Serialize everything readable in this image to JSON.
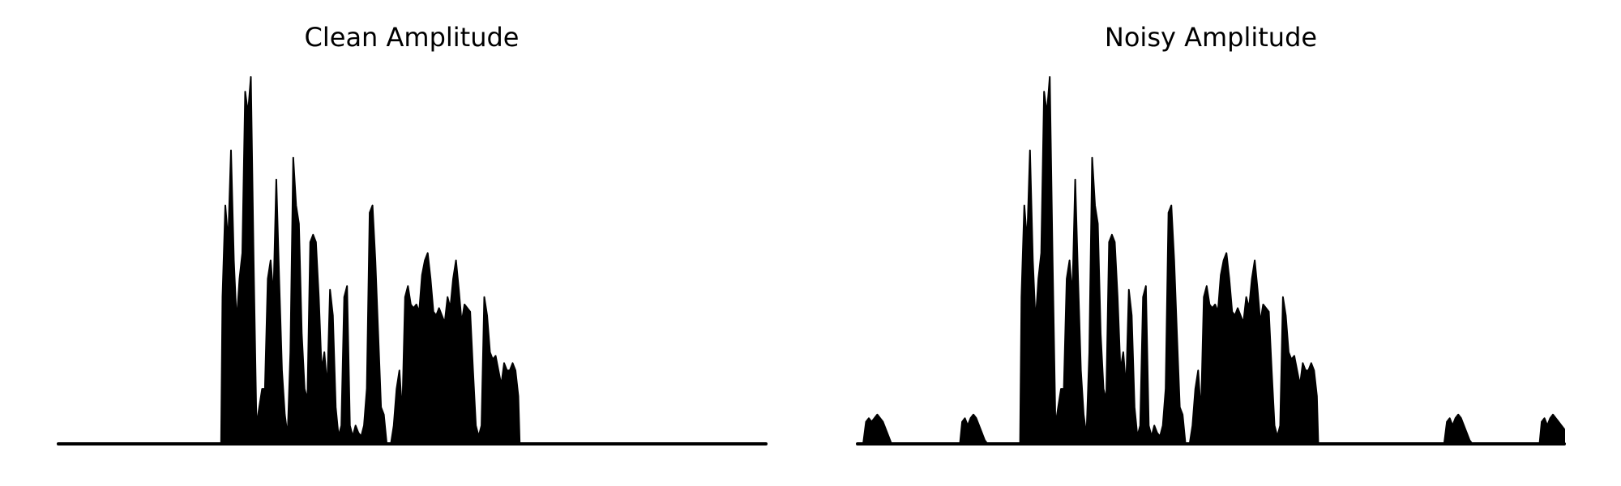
{
  "figure": {
    "background": "#ffffff",
    "trace_color": "#000000",
    "axes_visible": false
  },
  "chart_data": [
    {
      "type": "area",
      "title": "Clean Amplitude",
      "xlabel": "",
      "ylabel": "",
      "grid": false,
      "xlim": [
        0,
        1
      ],
      "ylim": [
        0,
        1
      ],
      "envelope": [
        [
          0.0,
          0.0
        ],
        [
          0.23,
          0.0
        ],
        [
          0.232,
          0.4
        ],
        [
          0.236,
          0.65
        ],
        [
          0.24,
          0.55
        ],
        [
          0.244,
          0.8
        ],
        [
          0.248,
          0.5
        ],
        [
          0.252,
          0.33
        ],
        [
          0.256,
          0.45
        ],
        [
          0.26,
          0.52
        ],
        [
          0.264,
          0.96
        ],
        [
          0.268,
          0.9
        ],
        [
          0.272,
          1.0
        ],
        [
          0.276,
          0.5
        ],
        [
          0.28,
          0.05
        ],
        [
          0.284,
          0.1
        ],
        [
          0.288,
          0.15
        ],
        [
          0.292,
          0.15
        ],
        [
          0.296,
          0.45
        ],
        [
          0.3,
          0.5
        ],
        [
          0.304,
          0.4
        ],
        [
          0.308,
          0.72
        ],
        [
          0.312,
          0.45
        ],
        [
          0.316,
          0.2
        ],
        [
          0.32,
          0.08
        ],
        [
          0.324,
          0.02
        ],
        [
          0.328,
          0.25
        ],
        [
          0.332,
          0.78
        ],
        [
          0.336,
          0.65
        ],
        [
          0.34,
          0.6
        ],
        [
          0.344,
          0.3
        ],
        [
          0.348,
          0.15
        ],
        [
          0.352,
          0.12
        ],
        [
          0.356,
          0.55
        ],
        [
          0.36,
          0.57
        ],
        [
          0.364,
          0.55
        ],
        [
          0.368,
          0.4
        ],
        [
          0.372,
          0.2
        ],
        [
          0.376,
          0.25
        ],
        [
          0.38,
          0.15
        ],
        [
          0.384,
          0.42
        ],
        [
          0.388,
          0.35
        ],
        [
          0.392,
          0.1
        ],
        [
          0.396,
          0.02
        ],
        [
          0.4,
          0.05
        ],
        [
          0.404,
          0.4
        ],
        [
          0.408,
          0.43
        ],
        [
          0.412,
          0.05
        ],
        [
          0.416,
          0.02
        ],
        [
          0.42,
          0.05
        ],
        [
          0.424,
          0.03
        ],
        [
          0.428,
          0.02
        ],
        [
          0.432,
          0.05
        ],
        [
          0.436,
          0.15
        ],
        [
          0.44,
          0.63
        ],
        [
          0.444,
          0.65
        ],
        [
          0.448,
          0.5
        ],
        [
          0.452,
          0.3
        ],
        [
          0.456,
          0.1
        ],
        [
          0.46,
          0.08
        ],
        [
          0.464,
          0.0
        ],
        [
          0.47,
          0.0
        ],
        [
          0.474,
          0.05
        ],
        [
          0.478,
          0.15
        ],
        [
          0.482,
          0.2
        ],
        [
          0.486,
          0.08
        ],
        [
          0.49,
          0.4
        ],
        [
          0.494,
          0.43
        ],
        [
          0.498,
          0.38
        ],
        [
          0.502,
          0.37
        ],
        [
          0.506,
          0.38
        ],
        [
          0.51,
          0.36
        ],
        [
          0.514,
          0.46
        ],
        [
          0.518,
          0.5
        ],
        [
          0.522,
          0.52
        ],
        [
          0.526,
          0.45
        ],
        [
          0.53,
          0.36
        ],
        [
          0.534,
          0.35
        ],
        [
          0.538,
          0.37
        ],
        [
          0.542,
          0.35
        ],
        [
          0.546,
          0.33
        ],
        [
          0.55,
          0.4
        ],
        [
          0.554,
          0.37
        ],
        [
          0.558,
          0.45
        ],
        [
          0.562,
          0.5
        ],
        [
          0.566,
          0.42
        ],
        [
          0.57,
          0.33
        ],
        [
          0.574,
          0.38
        ],
        [
          0.578,
          0.37
        ],
        [
          0.582,
          0.36
        ],
        [
          0.586,
          0.2
        ],
        [
          0.59,
          0.05
        ],
        [
          0.594,
          0.02
        ],
        [
          0.598,
          0.05
        ],
        [
          0.602,
          0.4
        ],
        [
          0.606,
          0.35
        ],
        [
          0.61,
          0.25
        ],
        [
          0.614,
          0.23
        ],
        [
          0.618,
          0.24
        ],
        [
          0.622,
          0.2
        ],
        [
          0.626,
          0.16
        ],
        [
          0.63,
          0.22
        ],
        [
          0.634,
          0.2
        ],
        [
          0.638,
          0.2
        ],
        [
          0.642,
          0.22
        ],
        [
          0.646,
          0.2
        ],
        [
          0.65,
          0.13
        ],
        [
          0.652,
          0.0
        ],
        [
          0.7,
          0.0
        ],
        [
          1.0,
          0.0
        ]
      ]
    },
    {
      "type": "area",
      "title": "Noisy Amplitude",
      "xlabel": "",
      "ylabel": "",
      "grid": false,
      "xlim": [
        0,
        1
      ],
      "ylim": [
        0,
        1
      ],
      "envelope": [
        [
          0.0,
          0.0
        ],
        [
          0.008,
          0.0
        ],
        [
          0.012,
          0.06
        ],
        [
          0.016,
          0.07
        ],
        [
          0.02,
          0.06
        ],
        [
          0.024,
          0.07
        ],
        [
          0.028,
          0.08
        ],
        [
          0.032,
          0.07
        ],
        [
          0.036,
          0.06
        ],
        [
          0.04,
          0.04
        ],
        [
          0.044,
          0.02
        ],
        [
          0.048,
          0.0
        ],
        [
          0.145,
          0.0
        ],
        [
          0.148,
          0.06
        ],
        [
          0.152,
          0.07
        ],
        [
          0.156,
          0.05
        ],
        [
          0.16,
          0.07
        ],
        [
          0.164,
          0.08
        ],
        [
          0.168,
          0.07
        ],
        [
          0.172,
          0.05
        ],
        [
          0.176,
          0.03
        ],
        [
          0.18,
          0.01
        ],
        [
          0.184,
          0.0
        ],
        [
          0.23,
          0.0
        ],
        [
          0.232,
          0.4
        ],
        [
          0.236,
          0.65
        ],
        [
          0.24,
          0.55
        ],
        [
          0.244,
          0.8
        ],
        [
          0.248,
          0.5
        ],
        [
          0.252,
          0.33
        ],
        [
          0.256,
          0.45
        ],
        [
          0.26,
          0.52
        ],
        [
          0.264,
          0.96
        ],
        [
          0.268,
          0.9
        ],
        [
          0.272,
          1.0
        ],
        [
          0.276,
          0.5
        ],
        [
          0.28,
          0.05
        ],
        [
          0.284,
          0.1
        ],
        [
          0.288,
          0.15
        ],
        [
          0.292,
          0.15
        ],
        [
          0.296,
          0.45
        ],
        [
          0.3,
          0.5
        ],
        [
          0.304,
          0.4
        ],
        [
          0.308,
          0.72
        ],
        [
          0.312,
          0.45
        ],
        [
          0.316,
          0.2
        ],
        [
          0.32,
          0.08
        ],
        [
          0.324,
          0.02
        ],
        [
          0.328,
          0.25
        ],
        [
          0.332,
          0.78
        ],
        [
          0.336,
          0.65
        ],
        [
          0.34,
          0.6
        ],
        [
          0.344,
          0.3
        ],
        [
          0.348,
          0.15
        ],
        [
          0.352,
          0.12
        ],
        [
          0.356,
          0.55
        ],
        [
          0.36,
          0.57
        ],
        [
          0.364,
          0.55
        ],
        [
          0.368,
          0.4
        ],
        [
          0.372,
          0.2
        ],
        [
          0.376,
          0.25
        ],
        [
          0.38,
          0.15
        ],
        [
          0.384,
          0.42
        ],
        [
          0.388,
          0.35
        ],
        [
          0.392,
          0.1
        ],
        [
          0.396,
          0.02
        ],
        [
          0.4,
          0.05
        ],
        [
          0.404,
          0.4
        ],
        [
          0.408,
          0.43
        ],
        [
          0.412,
          0.05
        ],
        [
          0.416,
          0.02
        ],
        [
          0.42,
          0.05
        ],
        [
          0.424,
          0.03
        ],
        [
          0.428,
          0.02
        ],
        [
          0.432,
          0.05
        ],
        [
          0.436,
          0.15
        ],
        [
          0.44,
          0.63
        ],
        [
          0.444,
          0.65
        ],
        [
          0.448,
          0.5
        ],
        [
          0.452,
          0.3
        ],
        [
          0.456,
          0.1
        ],
        [
          0.46,
          0.08
        ],
        [
          0.464,
          0.0
        ],
        [
          0.47,
          0.0
        ],
        [
          0.474,
          0.05
        ],
        [
          0.478,
          0.15
        ],
        [
          0.482,
          0.2
        ],
        [
          0.486,
          0.08
        ],
        [
          0.49,
          0.4
        ],
        [
          0.494,
          0.43
        ],
        [
          0.498,
          0.38
        ],
        [
          0.502,
          0.37
        ],
        [
          0.506,
          0.38
        ],
        [
          0.51,
          0.36
        ],
        [
          0.514,
          0.46
        ],
        [
          0.518,
          0.5
        ],
        [
          0.522,
          0.52
        ],
        [
          0.526,
          0.45
        ],
        [
          0.53,
          0.36
        ],
        [
          0.534,
          0.35
        ],
        [
          0.538,
          0.37
        ],
        [
          0.542,
          0.35
        ],
        [
          0.546,
          0.33
        ],
        [
          0.55,
          0.4
        ],
        [
          0.554,
          0.37
        ],
        [
          0.558,
          0.45
        ],
        [
          0.562,
          0.5
        ],
        [
          0.566,
          0.42
        ],
        [
          0.57,
          0.33
        ],
        [
          0.574,
          0.38
        ],
        [
          0.578,
          0.37
        ],
        [
          0.582,
          0.36
        ],
        [
          0.586,
          0.2
        ],
        [
          0.59,
          0.05
        ],
        [
          0.594,
          0.02
        ],
        [
          0.598,
          0.05
        ],
        [
          0.602,
          0.4
        ],
        [
          0.606,
          0.35
        ],
        [
          0.61,
          0.25
        ],
        [
          0.614,
          0.23
        ],
        [
          0.618,
          0.24
        ],
        [
          0.622,
          0.2
        ],
        [
          0.626,
          0.16
        ],
        [
          0.63,
          0.22
        ],
        [
          0.634,
          0.2
        ],
        [
          0.638,
          0.2
        ],
        [
          0.642,
          0.22
        ],
        [
          0.646,
          0.2
        ],
        [
          0.65,
          0.13
        ],
        [
          0.652,
          0.0
        ],
        [
          0.83,
          0.0
        ],
        [
          0.834,
          0.06
        ],
        [
          0.838,
          0.07
        ],
        [
          0.842,
          0.05
        ],
        [
          0.846,
          0.07
        ],
        [
          0.85,
          0.08
        ],
        [
          0.854,
          0.07
        ],
        [
          0.858,
          0.05
        ],
        [
          0.862,
          0.03
        ],
        [
          0.866,
          0.01
        ],
        [
          0.87,
          0.0
        ],
        [
          0.965,
          0.0
        ],
        [
          0.968,
          0.06
        ],
        [
          0.972,
          0.07
        ],
        [
          0.976,
          0.05
        ],
        [
          0.98,
          0.07
        ],
        [
          0.984,
          0.08
        ],
        [
          0.988,
          0.07
        ],
        [
          0.992,
          0.06
        ],
        [
          0.996,
          0.05
        ],
        [
          1.0,
          0.04
        ]
      ]
    }
  ]
}
